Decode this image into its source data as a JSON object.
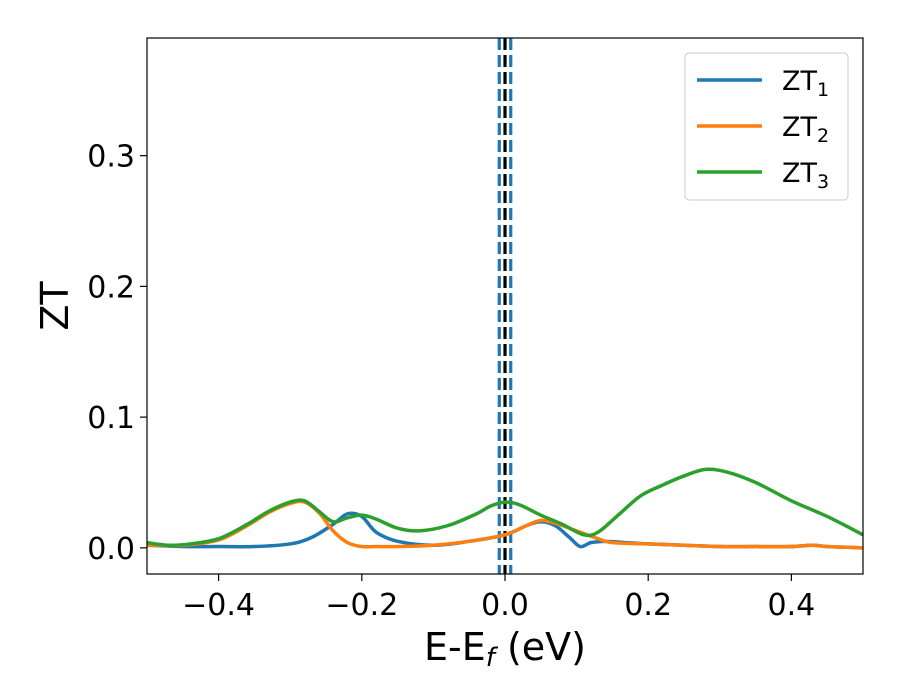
{
  "chart_data": {
    "type": "line",
    "xlabel": "E-E",
    "xlabel_sub": "f",
    "xlabel_unit": " (eV)",
    "ylabel": "ZT",
    "xlim": [
      -0.5,
      0.5
    ],
    "ylim": [
      -0.02,
      0.39
    ],
    "xticks": [
      -0.4,
      -0.2,
      0.0,
      0.2,
      0.4
    ],
    "xtick_labels": [
      "−0.4",
      "−0.2",
      "0.0",
      "0.2",
      "0.4"
    ],
    "yticks": [
      0.0,
      0.1,
      0.2,
      0.3
    ],
    "ytick_labels": [
      "0.0",
      "0.1",
      "0.2",
      "0.3"
    ],
    "grid": false,
    "legend_position": "top-right",
    "vertical_lines": [
      {
        "x": 0.0,
        "color": "#000000",
        "style": "dashed"
      },
      {
        "x": -0.008,
        "color": "#1f77b4",
        "style": "dashed"
      },
      {
        "x": 0.008,
        "color": "#1f77b4",
        "style": "dashed"
      }
    ],
    "series": [
      {
        "name": "ZT",
        "name_sub": "1",
        "color": "#1f77b4",
        "x": [
          -0.5,
          -0.45,
          -0.4,
          -0.35,
          -0.3,
          -0.27,
          -0.24,
          -0.22,
          -0.2,
          -0.18,
          -0.15,
          -0.1,
          -0.05,
          0.0,
          0.03,
          0.05,
          0.07,
          0.09,
          0.105,
          0.12,
          0.14,
          0.17,
          0.2,
          0.25,
          0.3,
          0.35,
          0.4,
          0.43,
          0.45,
          0.5
        ],
        "y": [
          0.002,
          0.001,
          0.001,
          0.001,
          0.003,
          0.008,
          0.018,
          0.026,
          0.024,
          0.012,
          0.005,
          0.002,
          0.005,
          0.01,
          0.017,
          0.02,
          0.017,
          0.008,
          0.001,
          0.004,
          0.005,
          0.004,
          0.003,
          0.002,
          0.001,
          0.001,
          0.001,
          0.002,
          0.001,
          0.0
        ]
      },
      {
        "name": "ZT",
        "name_sub": "2",
        "color": "#ff7f0e",
        "x": [
          -0.5,
          -0.45,
          -0.4,
          -0.36,
          -0.33,
          -0.3,
          -0.28,
          -0.26,
          -0.24,
          -0.22,
          -0.2,
          -0.18,
          -0.15,
          -0.1,
          -0.05,
          0.0,
          0.03,
          0.05,
          0.07,
          0.1,
          0.13,
          0.15,
          0.2,
          0.25,
          0.3,
          0.35,
          0.4,
          0.43,
          0.45,
          0.5
        ],
        "y": [
          0.002,
          0.002,
          0.006,
          0.017,
          0.027,
          0.034,
          0.035,
          0.027,
          0.013,
          0.004,
          0.001,
          0.001,
          0.001,
          0.002,
          0.005,
          0.01,
          0.017,
          0.021,
          0.019,
          0.013,
          0.007,
          0.004,
          0.003,
          0.002,
          0.001,
          0.001,
          0.001,
          0.002,
          0.001,
          0.0
        ]
      },
      {
        "name": "ZT",
        "name_sub": "3",
        "color": "#2ca02c",
        "x": [
          -0.5,
          -0.47,
          -0.44,
          -0.4,
          -0.36,
          -0.33,
          -0.3,
          -0.28,
          -0.26,
          -0.24,
          -0.22,
          -0.2,
          -0.18,
          -0.15,
          -0.12,
          -0.08,
          -0.04,
          -0.02,
          0.0,
          0.02,
          0.05,
          0.08,
          0.11,
          0.13,
          0.16,
          0.19,
          0.22,
          0.25,
          0.28,
          0.31,
          0.35,
          0.4,
          0.45,
          0.5
        ],
        "y": [
          0.004,
          0.002,
          0.003,
          0.007,
          0.018,
          0.028,
          0.035,
          0.036,
          0.028,
          0.02,
          0.023,
          0.025,
          0.022,
          0.015,
          0.013,
          0.017,
          0.026,
          0.032,
          0.035,
          0.033,
          0.025,
          0.018,
          0.01,
          0.012,
          0.026,
          0.04,
          0.048,
          0.055,
          0.06,
          0.058,
          0.05,
          0.036,
          0.024,
          0.01
        ]
      }
    ]
  }
}
